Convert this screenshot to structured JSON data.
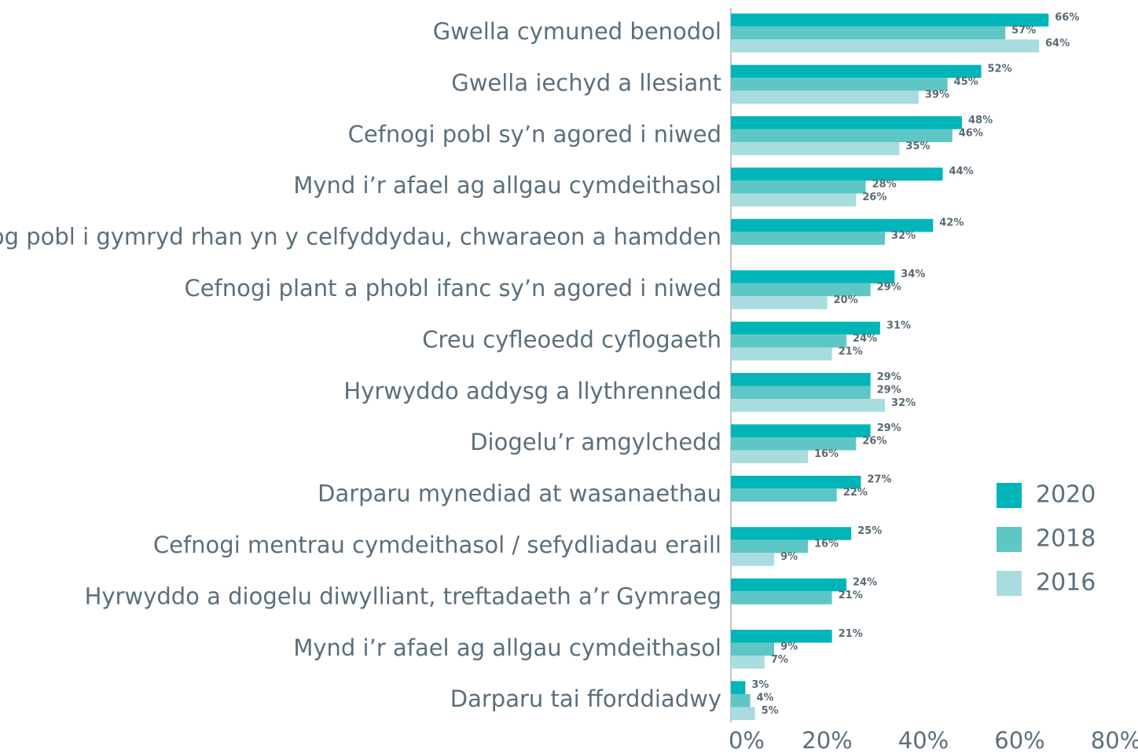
{
  "chart_data": {
    "type": "bar",
    "orientation": "horizontal",
    "categories": [
      "Gwella cymuned benodol",
      "Gwella iechyd a llesiant",
      "Cefnogi pobl sy’n agored i niwed",
      "Mynd i’r afael ag allgau cymdeithasol",
      "Annog pobl i gymryd rhan yn y celfyddydau, chwaraeon a hamdden",
      "Cefnogi plant a phobl ifanc sy’n agored i niwed",
      "Creu cyfleoedd cyflogaeth",
      "Hyrwyddo addysg a llythrennedd",
      "Diogelu’r amgylchedd",
      "Darparu mynediad at wasanaethau",
      "Cefnogi mentrau cymdeithasol / sefydliadau eraill",
      "Hyrwyddo a diogelu diwylliant, treftadaeth a’r Gymraeg",
      "Mynd i’r afael ag allgau cymdeithasol",
      "Darparu tai fforddiadwy"
    ],
    "series": [
      {
        "name": "2020",
        "color": "#00b5b8",
        "values": [
          66,
          52,
          48,
          44,
          42,
          34,
          31,
          29,
          29,
          27,
          25,
          24,
          21,
          3
        ],
        "value_labels": [
          "66%",
          "52%",
          "48%",
          "44%",
          "42%",
          "34%",
          "31%",
          "29%",
          "29%",
          "27%",
          "25%",
          "24%",
          "21%",
          "3%"
        ]
      },
      {
        "name": "2018",
        "color": "#5fc6c6",
        "values": [
          57,
          45,
          46,
          28,
          32,
          29,
          24,
          29,
          26,
          22,
          16,
          21,
          9,
          4
        ],
        "value_labels": [
          "57%",
          "45%",
          "46%",
          "28%",
          "32%",
          "29%",
          "24%",
          "29%",
          "26%",
          "22%",
          "16%",
          "21%",
          "9%",
          "4%"
        ]
      },
      {
        "name": "2016",
        "color": "#a8dcdf",
        "values": [
          64,
          39,
          35,
          26,
          null,
          20,
          21,
          32,
          16,
          null,
          9,
          null,
          7,
          5
        ],
        "value_labels": [
          "64%",
          "39%",
          "35%",
          "26%",
          null,
          "20%",
          "21%",
          "32%",
          "16%",
          null,
          "9%",
          null,
          "7%",
          "5%"
        ]
      }
    ],
    "xlim": [
      0,
      80
    ],
    "xticks": [
      {
        "value": 0,
        "label": "0%"
      },
      {
        "value": 20,
        "label": "20%"
      },
      {
        "value": 40,
        "label": "40%"
      },
      {
        "value": 60,
        "label": "60%"
      },
      {
        "value": 80,
        "label": "80%"
      }
    ],
    "legend": "right"
  }
}
